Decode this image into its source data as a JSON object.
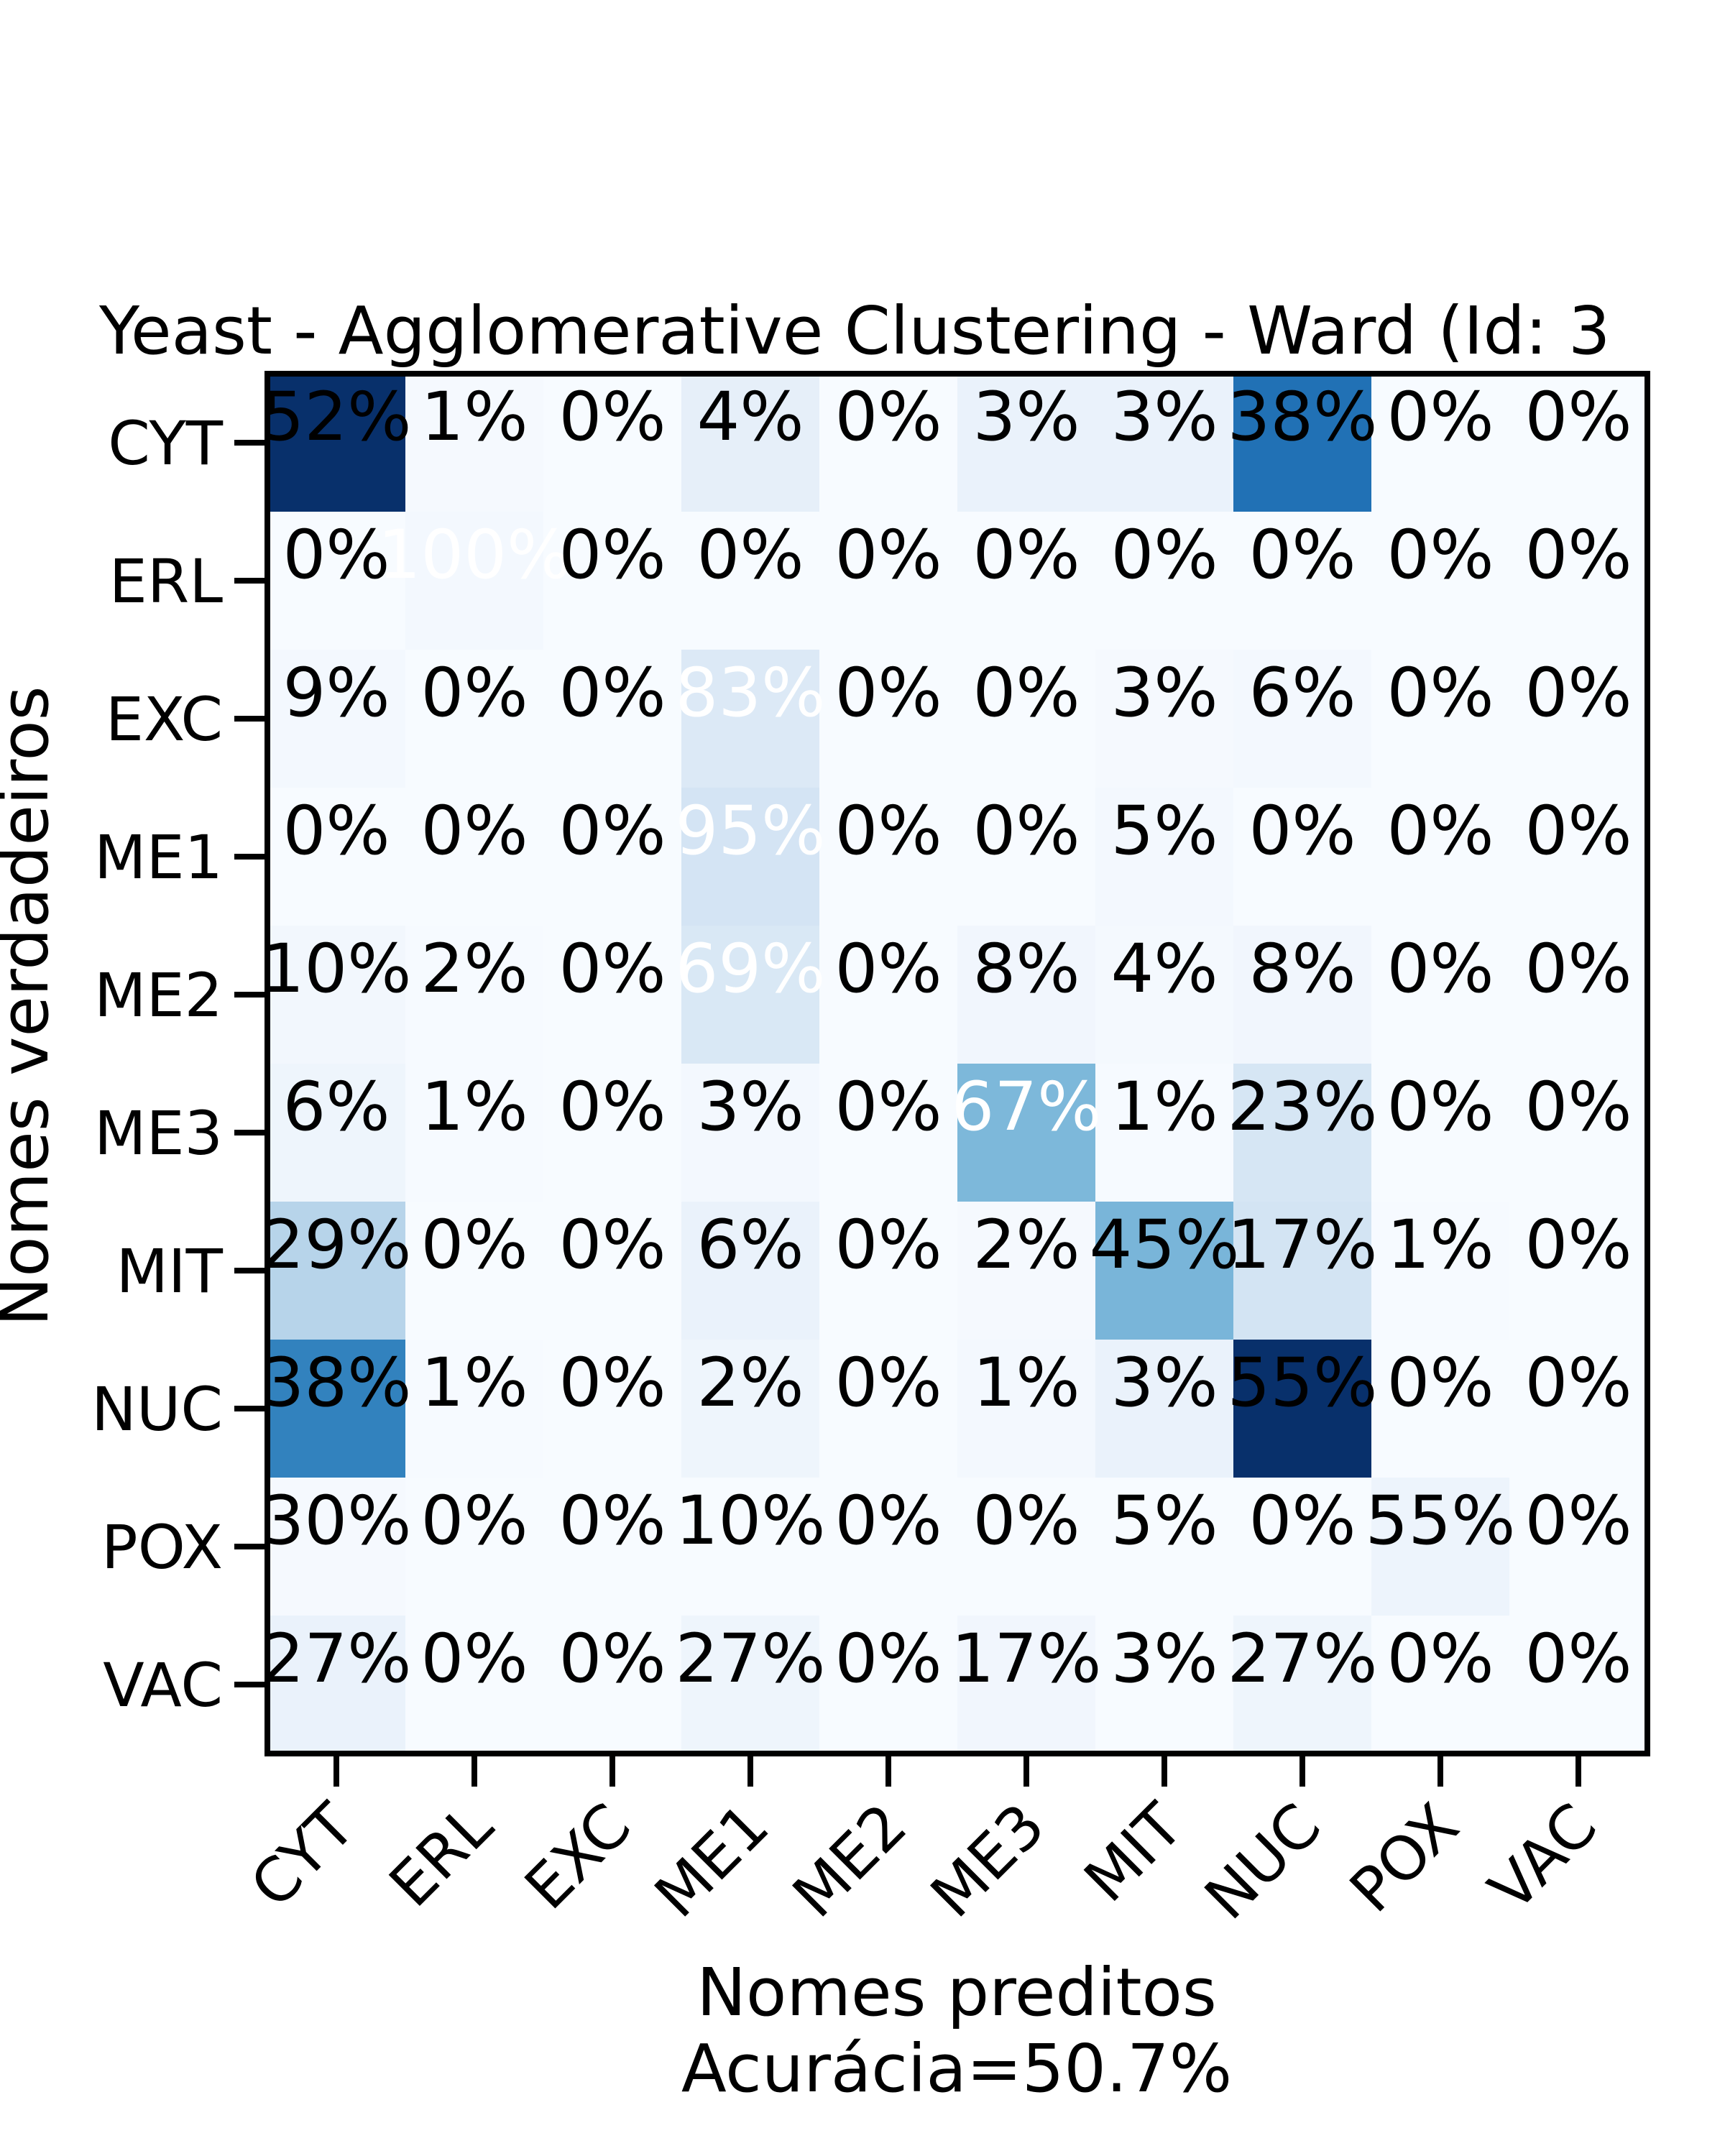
{
  "chart_data": {
    "type": "heatmap",
    "title": "Yeast - Agglomerative Clustering - Ward (Id: 3",
    "xlabel": "Nomes preditos",
    "accuracy_label": "Acurácia=50.7%",
    "ylabel": "Nomes verdadeiros",
    "x_categories": [
      "CYT",
      "ERL",
      "EXC",
      "ME1",
      "ME2",
      "ME3",
      "MIT",
      "NUC",
      "POX",
      "VAC"
    ],
    "y_categories": [
      "CYT",
      "ERL",
      "EXC",
      "ME1",
      "ME2",
      "ME3",
      "MIT",
      "NUC",
      "POX",
      "VAC"
    ],
    "values": [
      [
        52,
        1,
        0,
        4,
        0,
        3,
        3,
        38,
        0,
        0
      ],
      [
        0,
        100,
        0,
        0,
        0,
        0,
        0,
        0,
        0,
        0
      ],
      [
        9,
        0,
        0,
        83,
        0,
        0,
        3,
        6,
        0,
        0
      ],
      [
        0,
        0,
        0,
        95,
        0,
        0,
        5,
        0,
        0,
        0
      ],
      [
        10,
        2,
        0,
        69,
        0,
        8,
        4,
        8,
        0,
        0
      ],
      [
        6,
        1,
        0,
        3,
        0,
        67,
        1,
        23,
        0,
        0
      ],
      [
        29,
        0,
        0,
        6,
        0,
        2,
        45,
        17,
        1,
        0
      ],
      [
        38,
        1,
        0,
        2,
        0,
        1,
        3,
        55,
        0,
        0
      ],
      [
        30,
        0,
        0,
        10,
        0,
        0,
        5,
        0,
        55,
        0
      ],
      [
        27,
        0,
        0,
        27,
        0,
        17,
        3,
        27,
        0,
        0
      ]
    ],
    "cell_colors": [
      [
        "#08306b",
        "#f5f9fe",
        "#f7fbff",
        "#e6eff9",
        "#f7fbff",
        "#eaf2fb",
        "#eaf2fb",
        "#2171b5",
        "#f7fbff",
        "#f7fbff"
      ],
      [
        "#f7fbff",
        "#f3f8fe",
        "#f7fbff",
        "#f7fbff",
        "#f7fbff",
        "#f7fbff",
        "#f7fbff",
        "#f7fbff",
        "#f7fbff",
        "#f7fbff"
      ],
      [
        "#f3f8fe",
        "#f7fbff",
        "#f7fbff",
        "#dce9f6",
        "#f7fbff",
        "#f7fbff",
        "#f5f9fe",
        "#f3f8fe",
        "#f7fbff",
        "#f7fbff"
      ],
      [
        "#f7fbff",
        "#f7fbff",
        "#f7fbff",
        "#d4e4f4",
        "#f7fbff",
        "#f7fbff",
        "#f3f8fe",
        "#f7fbff",
        "#f7fbff",
        "#f7fbff"
      ],
      [
        "#f2f7fd",
        "#f6faff",
        "#f7fbff",
        "#d9e8f5",
        "#f7fbff",
        "#f1f6fd",
        "#f4f9fe",
        "#f1f6fd",
        "#f7fbff",
        "#f7fbff"
      ],
      [
        "#eef5fc",
        "#f6faff",
        "#f7fbff",
        "#f3f8fe",
        "#f7fbff",
        "#7db8da",
        "#f6faff",
        "#d6e6f4",
        "#f7fbff",
        "#f7fbff"
      ],
      [
        "#b7d4ea",
        "#f7fbff",
        "#f7fbff",
        "#eaf2fb",
        "#f7fbff",
        "#f5f9fe",
        "#79b5d9",
        "#d3e4f3",
        "#f6faff",
        "#f7fbff"
      ],
      [
        "#3282be",
        "#f6faff",
        "#f7fbff",
        "#eef5fc",
        "#f7fbff",
        "#f3f8fe",
        "#eaf2fb",
        "#08306b",
        "#f7fbff",
        "#f7fbff"
      ],
      [
        "#f5f9fe",
        "#f7fbff",
        "#f7fbff",
        "#f7fbff",
        "#f7fbff",
        "#f7fbff",
        "#f7fbff",
        "#f7fbff",
        "#edf4fc",
        "#f7fbff"
      ],
      [
        "#eaf2fb",
        "#f7fbff",
        "#f7fbff",
        "#eef5fc",
        "#f7fbff",
        "#f1f6fd",
        "#f7fbff",
        "#eef5fc",
        "#f7fbff",
        "#f7fbff"
      ]
    ],
    "white_text_cells": [
      [
        1,
        1
      ],
      [
        2,
        3
      ],
      [
        3,
        3
      ],
      [
        4,
        3
      ],
      [
        5,
        5
      ]
    ],
    "value_suffix": "%",
    "colormap": "Blues",
    "grid": false,
    "legend": "none"
  }
}
